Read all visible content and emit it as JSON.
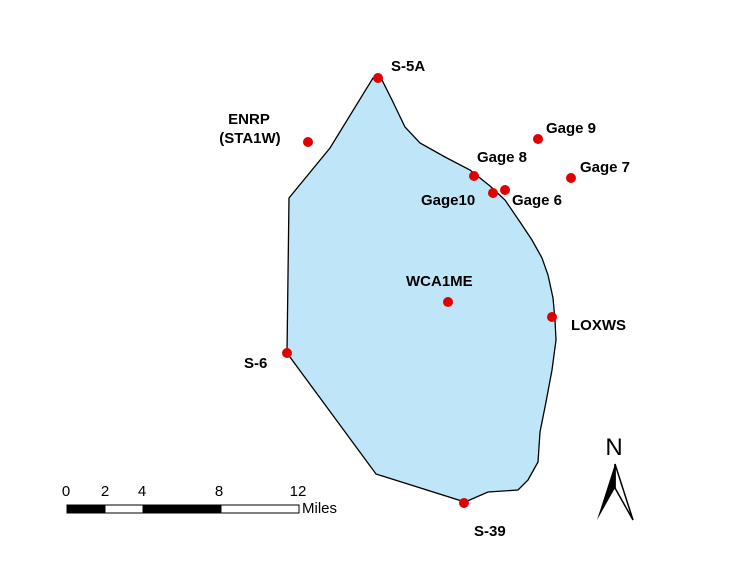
{
  "map": {
    "area_name": "WCA1ME",
    "colors": {
      "area_fill": "#bfe6f8",
      "area_stroke": "#000000",
      "station": "#e00000"
    },
    "stations": [
      {
        "id": "s5a",
        "label": "S-5A"
      },
      {
        "id": "enrp",
        "label": "ENRP",
        "label2": "(STA1W)"
      },
      {
        "id": "gage9",
        "label": "Gage 9"
      },
      {
        "id": "gage8",
        "label": "Gage 8"
      },
      {
        "id": "gage7",
        "label": "Gage 7"
      },
      {
        "id": "gage10",
        "label": "Gage10"
      },
      {
        "id": "gage6",
        "label": "Gage 6"
      },
      {
        "id": "wca1me",
        "label": "WCA1ME"
      },
      {
        "id": "loxws",
        "label": "LOXWS"
      },
      {
        "id": "s6",
        "label": "S-6"
      },
      {
        "id": "s39",
        "label": "S-39"
      }
    ],
    "scale_bar": {
      "ticks": [
        "0",
        "2",
        "4",
        "8",
        "12"
      ],
      "unit": "Miles"
    },
    "north_arrow": {
      "label": "N",
      "icon": "north-arrow-icon"
    }
  }
}
